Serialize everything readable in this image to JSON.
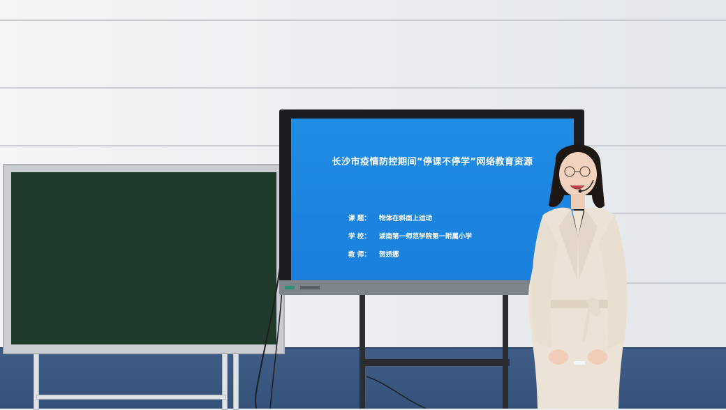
{
  "slide": {
    "title": "长沙市疫情防控期间“停课不停学”网络教育资源",
    "rows": [
      {
        "label": "课  题：",
        "value": "物体在斜面上运动"
      },
      {
        "label": "学  校：",
        "value": "湖南第一师范学院第一附属小学"
      },
      {
        "label": "教  师：",
        "value": "贺娇娜"
      }
    ]
  },
  "colors": {
    "slide_bg": "#1f8de6",
    "chalkboard": "#1f3a2d",
    "wainscot": "#3f5d86",
    "coat": "#ece3d6"
  }
}
